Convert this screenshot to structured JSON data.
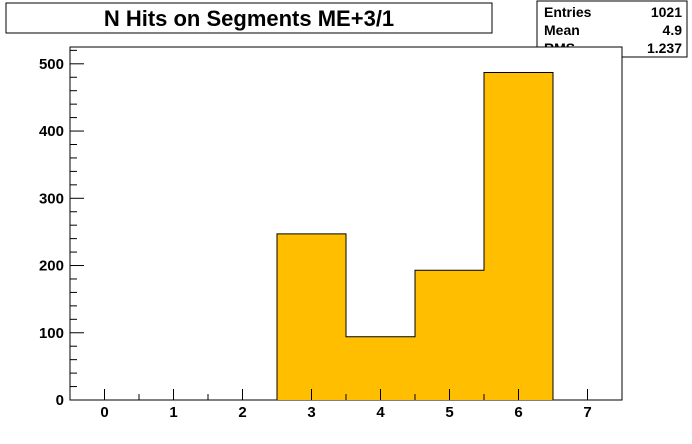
{
  "chart_data": {
    "type": "bar",
    "title": "N Hits on Segments ME+3/1",
    "xlabel": "",
    "ylabel": "",
    "bins": [
      {
        "low": -0.5,
        "high": 0.5,
        "value": 0
      },
      {
        "low": 0.5,
        "high": 1.5,
        "value": 0
      },
      {
        "low": 1.5,
        "high": 2.5,
        "value": 0
      },
      {
        "low": 2.5,
        "high": 3.5,
        "value": 247
      },
      {
        "low": 3.5,
        "high": 4.5,
        "value": 94
      },
      {
        "low": 4.5,
        "high": 5.5,
        "value": 193
      },
      {
        "low": 5.5,
        "high": 6.5,
        "value": 487
      },
      {
        "low": 6.5,
        "high": 7.5,
        "value": 0
      }
    ],
    "xlim": [
      -0.5,
      7.5
    ],
    "ylim": [
      0,
      525
    ],
    "x_ticks": [
      "0",
      "1",
      "2",
      "3",
      "4",
      "5",
      "6",
      "7"
    ],
    "y_ticks": [
      "0",
      "100",
      "200",
      "300",
      "400",
      "500"
    ],
    "bar_color": "#ffbf00",
    "grid": false,
    "stats": {
      "rows": [
        {
          "label": "Entries",
          "value": "1021"
        },
        {
          "label": "Mean",
          "value": "4.9"
        },
        {
          "label": "RMS",
          "value": "1.237"
        }
      ]
    }
  }
}
